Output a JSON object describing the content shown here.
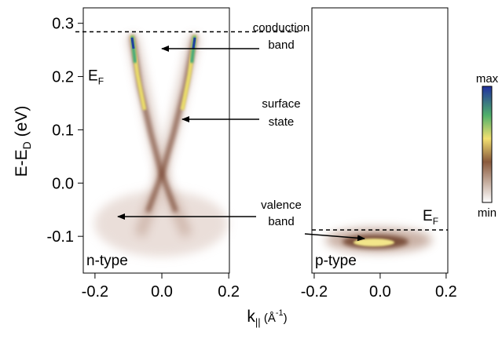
{
  "chart_data": [
    {
      "type": "heatmap",
      "label": "n-type",
      "xlim": [
        -0.235,
        0.202
      ],
      "xticks": [
        -0.2,
        {
          "value": 0,
          "label": "0.0"
        },
        0.2
      ],
      "ylim": [
        -0.169,
        0.329
      ],
      "yticks": [
        -0.1,
        {
          "value": 0,
          "label": "0.0"
        },
        0.1,
        0.2,
        0.3
      ],
      "fermi_level": 0.284,
      "fermi_label": {
        "main": "E",
        "sub": "F"
      }
    },
    {
      "type": "heatmap",
      "label": "p-type",
      "xlim": [
        -0.207,
        0.205
      ],
      "xticks": [
        -0.2,
        {
          "value": 0,
          "label": "0.0"
        },
        0.2
      ],
      "ylim": [
        -0.169,
        0.329
      ],
      "fermi_level": -0.088,
      "fermi_label": {
        "main": "E",
        "sub": "F"
      }
    }
  ],
  "figure": {
    "xlabel": {
      "main": "k",
      "sub": "||",
      "open": " (Å",
      "sup": "-1",
      "close": ")"
    },
    "ylabel": {
      "main": "E-E",
      "sub": "D",
      "unit": " (eV)"
    },
    "annotations": [
      [
        "conduction",
        "band"
      ],
      [
        "surface",
        "state"
      ],
      [
        "valence",
        "band"
      ]
    ],
    "colorbar": {
      "top": "max",
      "bottom": "min"
    }
  }
}
